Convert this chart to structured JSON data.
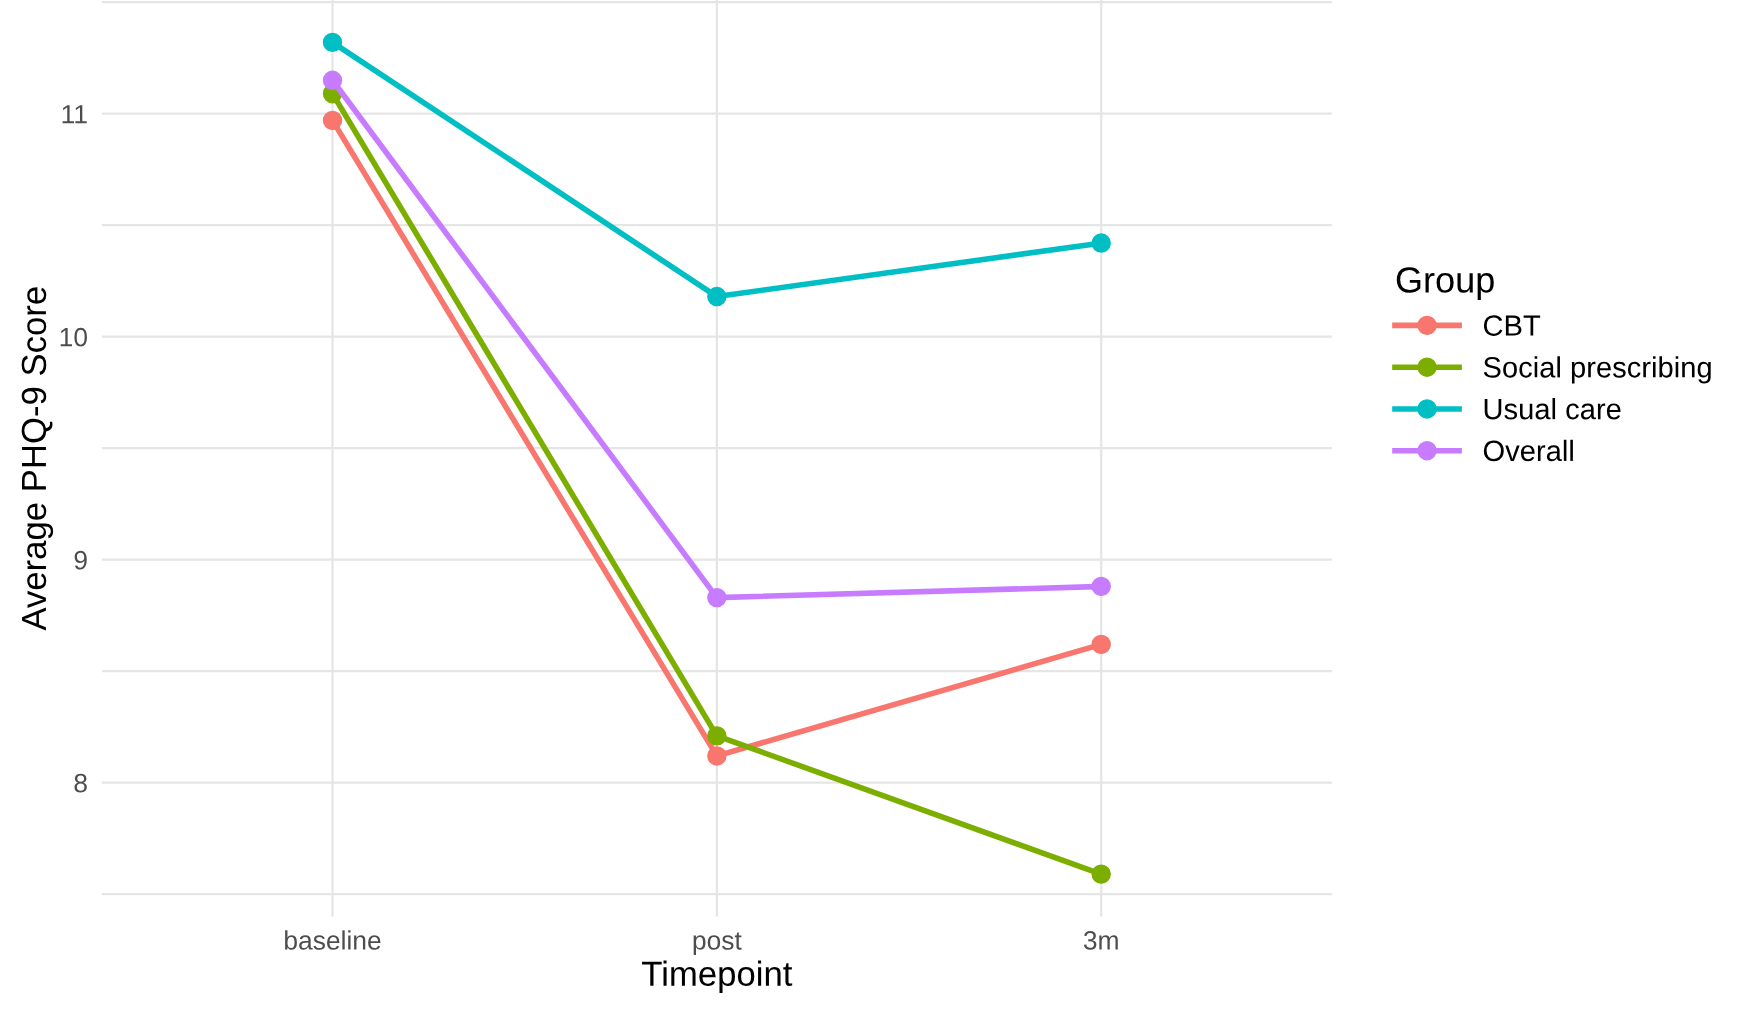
{
  "chart_data": {
    "type": "line",
    "xlabel": "Timepoint",
    "ylabel": "Average PHQ-9 Score",
    "legend_title": "Group",
    "categories": [
      "baseline",
      "post",
      "3m"
    ],
    "series": [
      {
        "name": "CBT",
        "color": "#f8766d",
        "values": [
          10.97,
          8.12,
          8.62
        ]
      },
      {
        "name": "Social prescribing",
        "color": "#7cae00",
        "values": [
          11.09,
          8.21,
          7.59
        ]
      },
      {
        "name": "Usual care",
        "color": "#00bfc4",
        "values": [
          11.32,
          10.18,
          10.42
        ]
      },
      {
        "name": "Overall",
        "color": "#c77cff",
        "values": [
          11.15,
          8.83,
          8.88
        ]
      }
    ],
    "ylim": [
      7.4,
      11.51
    ],
    "yticks": [
      {
        "value": 7.5,
        "label": null
      },
      8,
      {
        "value": 8.5,
        "label": null
      },
      9,
      {
        "value": 9.5,
        "label": null
      },
      10,
      {
        "value": 10.5,
        "label": null
      },
      11,
      {
        "value": 11.5,
        "label": null
      }
    ],
    "grid": true,
    "legend": "right",
    "marker": "circle",
    "line_style": "solid"
  }
}
